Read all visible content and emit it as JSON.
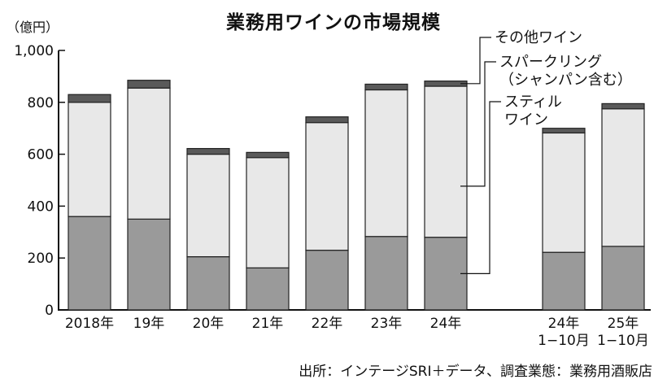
{
  "unit_label": "（億円）",
  "source_label": "出所：インテージSRI＋データ、調査業態：業務用酒販店",
  "colors": {
    "still": "#9a9a9a",
    "sparkling": "#e8e8e8",
    "other": "#5a5a5a",
    "axis": "#111111",
    "bar_edge": "#222222"
  },
  "chart_data": {
    "type": "bar",
    "stacked": true,
    "title": "業務用ワインの市場規模",
    "ylabel": "",
    "ylim": [
      0,
      1000
    ],
    "yticks": [
      "0",
      "200",
      "400",
      "600",
      "800",
      "1,000"
    ],
    "grid": false,
    "legend_placement": "right",
    "categories": [
      {
        "label": [
          "2018年"
        ]
      },
      {
        "label": [
          "19年"
        ]
      },
      {
        "label": [
          "20年"
        ]
      },
      {
        "label": [
          "21年"
        ]
      },
      {
        "label": [
          "22年"
        ]
      },
      {
        "label": [
          "23年"
        ]
      },
      {
        "label": [
          "24年"
        ]
      },
      {
        "label": [
          "24年",
          "1−10月"
        ]
      },
      {
        "label": [
          "25年",
          "1−10月"
        ]
      }
    ],
    "series": [
      {
        "name": "スティル ワイン",
        "label_lines": [
          "スティル",
          "ワイン"
        ],
        "color_key": "still",
        "values": [
          360,
          350,
          205,
          162,
          230,
          283,
          280,
          222,
          245
        ]
      },
      {
        "name": "スパークリング （シャンパン含む）",
        "label_lines": [
          "スパークリング",
          "（シャンパン含む）"
        ],
        "color_key": "sparkling",
        "values": [
          440,
          505,
          395,
          425,
          492,
          565,
          582,
          460,
          530
        ]
      },
      {
        "name": "その他ワイン",
        "label_lines": [
          "その他ワイン"
        ],
        "color_key": "other",
        "values": [
          30,
          30,
          22,
          20,
          22,
          22,
          20,
          18,
          20
        ]
      }
    ]
  }
}
